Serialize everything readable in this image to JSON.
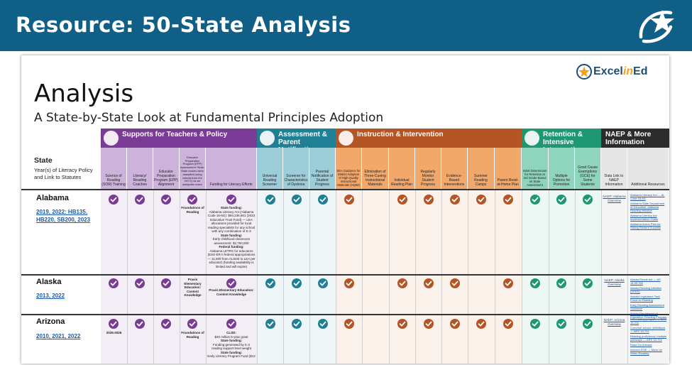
{
  "banner": {
    "title": "Resource: 50-State Analysis",
    "color": "#0f5f87"
  },
  "doc": {
    "brand": {
      "prefix": "Excel",
      "mid": "in",
      "suffix": "Ed"
    },
    "title": "Analysis",
    "subtitle": "A State-by-State Look at Fundamental Principles Adoption",
    "state_header": {
      "title": "State",
      "sub": "Year(s) of Literacy Policy and Link to Statutes"
    },
    "categories": [
      {
        "label": "Supports for Teachers & Policy",
        "color": "#7a3b96",
        "icon": "people-icon"
      },
      {
        "label": "Assessment & Parent Notification",
        "color": "#1f7f95",
        "icon": "magnifier-icon"
      },
      {
        "label": "Instruction & Intervention",
        "color": "#b55424",
        "icon": "book-icon"
      },
      {
        "label": "Retention & Intensive Intervention",
        "color": "#1d9873",
        "icon": "retention-icon"
      },
      {
        "label": "NAEP & More Information",
        "color": "#2b2b2b",
        "icon": ""
      }
    ],
    "columns": [
      "Science of Reading (SOR) Training",
      "Literacy/ Reading Coaches",
      "Educator Preparation Program (EPP) Alignment",
      "Educator Preparation Program (EPP) Assessment *Note: State exams were classified using criteria from the NCTQ as an adequate exam",
      "Funding for Literacy Efforts",
      "Universal Reading Screener",
      "Screener for Characteristics of Dyslexia",
      "Parental Notification of Student Progress",
      "SEA Guidance for District Adoption of High-Quality Instructional Materials (HQIM)",
      "Elimination of Three-Cueing Instructional Materials",
      "Individual Reading Plan",
      "Regularly Monitor Student Progress",
      "Evidence-Based Interventions",
      "Summer Reading Camps",
      "Parent Read-at-Home Plan",
      "Initial Determinant for Retention at 3rd Grade Based on State Assessment",
      "Multiple Options for Promotion",
      "Good Cause Exemptions (GCE) for Some Students",
      "Data Link to NAEP Information",
      "Additional Resources"
    ],
    "states": [
      {
        "name": "Alabama",
        "years_text": "2019, 2022: HB135, HB220, SB200, 2023",
        "epp_assessment": "Foundations of Reading",
        "funding_heading": "State funding:",
        "funding_text": "Alabama Literacy Act (Alabama Code 16-6G): $94,236,661 (2023 Education Trust Fund) — LEA allocations provided for local reading specialists for any school with any combination of K-3",
        "funding_heading2": "State funding:",
        "funding_text2": "Early childhood classroom assessment: $2,750,000",
        "funding_heading3": "Federal funding:",
        "funding_text3": "Alabama LETRS for educators (ESS-ER II federal appropriations — 11,500 from ALSDE to LEA per educator) (funding availability is limited and will expire)",
        "naep": "NAEP: Alabama Overview",
        "resources": [
          "Alabama Literacy Act — AL Code 16-6G",
          "Alabama State Department of Education: Alabama Reading Initiative",
          "Alabama Literacy Act Implementation Guide",
          "Alabama Action Plan for Strong Student Success"
        ]
      },
      {
        "name": "Alaska",
        "years_text": "2013, 2022",
        "coaches_note": "Praxis Elementary Education: Content Knowledge",
        "epp_assessment": "",
        "funding_text": "Praxis Elementary Education: Content Knowledge",
        "naep": "NAEP: Alaska Overview",
        "resources": [
          "Alaska Reads Act — AS 14.30.765",
          "Alaska Reading Initiative (DEED)",
          "Alaska Legislature Task Force on Reading",
          "Early Reading Assessment Guidance",
          "Alaska Department of Education: Reading Program"
        ]
      },
      {
        "name": "Arizona",
        "years_text": "2010, 2021, 2022",
        "sor_note": "2025-2026",
        "epp_assessment": "Foundations of Reading",
        "funding_heading": "CLSD:",
        "funding_text": "$20 million 5-year grant",
        "funding_heading2": "State funding:",
        "funding_text2": "Funding generated by K-3 reading support level weight",
        "funding_heading3": "State funding:",
        "funding_text3": "Early Literacy Program Fund ($12",
        "naep": "NAEP: Arizona Overview",
        "resources": [
          "K-3 reading program — ARS 15-211",
          "Common school: definitions — ARS 15-701",
          "Reading proficiency; multiple pathways — ARS 15-704",
          "Read On Arizona",
          "Arizona DOE — Move on When Reading"
        ]
      }
    ]
  }
}
